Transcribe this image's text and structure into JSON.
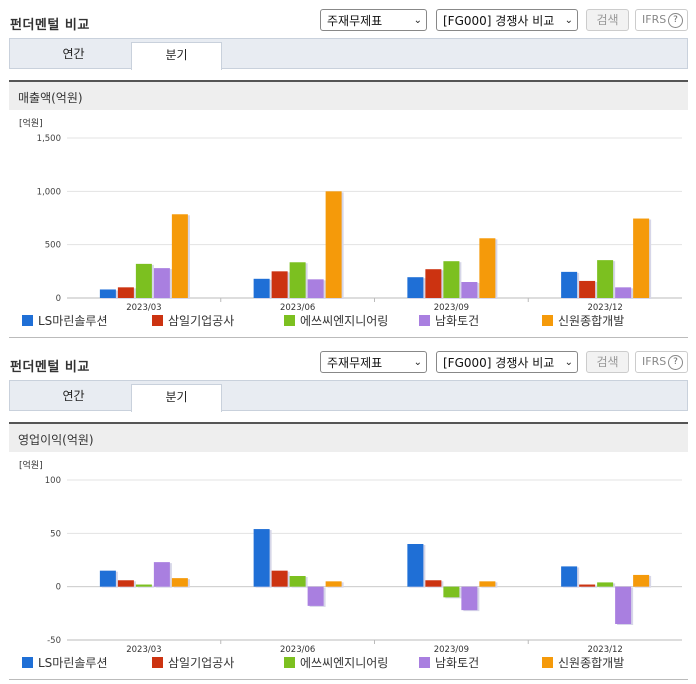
{
  "colors": [
    "#1f6fd6",
    "#cc3311",
    "#7cc020",
    "#a97fe0",
    "#f59a0a"
  ],
  "panels": [
    {
      "title": "펀더멘털 비교",
      "select1": "주재무제표",
      "select2": "[FG000] 경쟁사 비교",
      "search_label": "검색",
      "ifrs_label": "IFRS",
      "ifrs_help": "?",
      "tabs": [
        {
          "label": "연간"
        },
        {
          "label": "분기"
        }
      ],
      "active_tab": 1,
      "metric_title": "매출액(억원)",
      "unit_label": "[억원]",
      "legend": [
        "LS마린솔루션",
        "삼일기업공사",
        "에쓰씨엔지니어링",
        "남화토건",
        "신원종합개발"
      ],
      "chart_data": {
        "type": "bar",
        "categories": [
          "2023/03",
          "2023/06",
          "2023/09",
          "2023/12"
        ],
        "ylim": [
          0,
          1500
        ],
        "yticks": [
          0,
          500,
          1000,
          1500
        ],
        "ytick_labels": [
          "0",
          "500",
          "1,000",
          "1,500"
        ],
        "ylabel": "[억원]",
        "title": "매출액(억원)",
        "series": [
          {
            "name": "LS마린솔루션",
            "values": [
              80,
              180,
              195,
              245
            ]
          },
          {
            "name": "삼일기업공사",
            "values": [
              100,
              250,
              270,
              160
            ]
          },
          {
            "name": "에쓰씨엔지니어링",
            "values": [
              320,
              335,
              345,
              355
            ]
          },
          {
            "name": "남화토건",
            "values": [
              280,
              175,
              150,
              100
            ]
          },
          {
            "name": "신원종합개발",
            "values": [
              785,
              1000,
              560,
              745
            ]
          }
        ]
      }
    },
    {
      "title": "펀더멘털 비교",
      "select1": "주재무제표",
      "select2": "[FG000] 경쟁사 비교",
      "search_label": "검색",
      "ifrs_label": "IFRS",
      "ifrs_help": "?",
      "tabs": [
        {
          "label": "연간"
        },
        {
          "label": "분기"
        }
      ],
      "active_tab": 1,
      "metric_title": "영업이익(억원)",
      "unit_label": "[억원]",
      "legend": [
        "LS마린솔루션",
        "삼일기업공사",
        "에쓰씨엔지니어링",
        "남화토건",
        "신원종합개발"
      ],
      "chart_data": {
        "type": "bar",
        "categories": [
          "2023/03",
          "2023/06",
          "2023/09",
          "2023/12"
        ],
        "ylim": [
          -50,
          100
        ],
        "yticks": [
          -50,
          0,
          50,
          100
        ],
        "ytick_labels": [
          "-50",
          "0",
          "50",
          "100"
        ],
        "ylabel": "[억원]",
        "title": "영업이익(억원)",
        "series": [
          {
            "name": "LS마린솔루션",
            "values": [
              15,
              54,
              40,
              19
            ]
          },
          {
            "name": "삼일기업공사",
            "values": [
              6,
              15,
              6,
              2
            ]
          },
          {
            "name": "에쓰씨엔지니어링",
            "values": [
              2,
              10,
              -10,
              4
            ]
          },
          {
            "name": "남화토건",
            "values": [
              23,
              -18,
              -22,
              -35
            ]
          },
          {
            "name": "신원종합개발",
            "values": [
              8,
              5,
              5,
              11
            ]
          }
        ]
      }
    }
  ]
}
